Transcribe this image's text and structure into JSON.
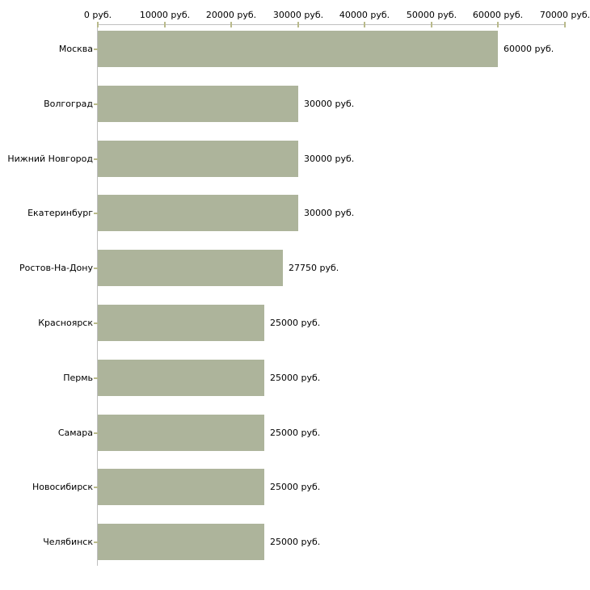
{
  "chart_data": {
    "type": "bar",
    "orientation": "horizontal",
    "title": "",
    "categories": [
      "Москва",
      "Волгоград",
      "Нижний Новгород",
      "Екатеринбург",
      "Ростов-На-Дону",
      "Красноярск",
      "Пермь",
      "Самара",
      "Новосибирск",
      "Челябинск"
    ],
    "values": [
      60000,
      30000,
      30000,
      30000,
      27750,
      25000,
      25000,
      25000,
      25000,
      25000
    ],
    "value_labels": [
      "60000 руб.",
      "30000 руб.",
      "30000 руб.",
      "30000 руб.",
      "27750 руб.",
      "25000 руб.",
      "25000 руб.",
      "25000 руб.",
      "25000 руб.",
      "25000 руб."
    ],
    "x_axis": {
      "min": 0,
      "max": 70000,
      "tick_step": 10000,
      "position": "top",
      "tick_labels": [
        "0 руб.",
        "10000 руб.",
        "20000 руб.",
        "30000 руб.",
        "40000 руб.",
        "50000 руб.",
        "60000 руб.",
        "70000 руб."
      ]
    },
    "grid": false,
    "legend": false,
    "colors": {
      "bar": "#adb49b",
      "axis_line": "#bfbfbf",
      "tick": "#b9ba8b",
      "text": "#000000",
      "background": "#ffffff"
    }
  }
}
